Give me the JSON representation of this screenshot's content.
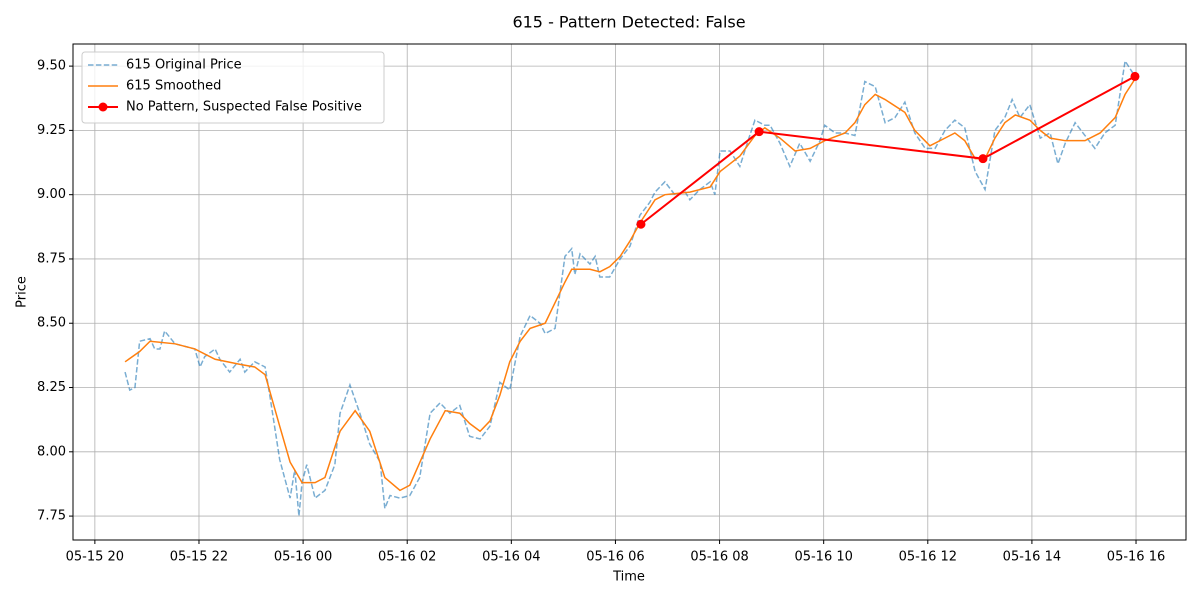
{
  "chart_data": {
    "type": "line",
    "title": "615 - Pattern Detected: False",
    "x_label": "Time",
    "y_label": "Price",
    "xlim": [
      19.58,
      40.96
    ],
    "ylim": [
      7.657,
      9.586
    ],
    "grid": true,
    "legend": "upper left",
    "xticks": [
      {
        "value": 20,
        "label": "05-15 20"
      },
      {
        "value": 22,
        "label": "05-15 22"
      },
      {
        "value": 24,
        "label": "05-16 00"
      },
      {
        "value": 26,
        "label": "05-16 02"
      },
      {
        "value": 28,
        "label": "05-16 04"
      },
      {
        "value": 30,
        "label": "05-16 06"
      },
      {
        "value": 32,
        "label": "05-16 08"
      },
      {
        "value": 34,
        "label": "05-16 10"
      },
      {
        "value": 36,
        "label": "05-16 12"
      },
      {
        "value": 38,
        "label": "05-16 14"
      },
      {
        "value": 40,
        "label": "05-16 16"
      }
    ],
    "yticks": [
      7.75,
      {
        "value": 8,
        "label": "8.00"
      },
      8.25,
      {
        "value": 8.5,
        "label": "8.50"
      },
      8.75,
      {
        "value": 9,
        "label": "9.00"
      },
      9.25,
      {
        "value": 9.5,
        "label": "9.50"
      }
    ],
    "series": [
      {
        "name": "615 Original Price",
        "color": "#1f77b4",
        "linestyle": "dashed",
        "alpha": 0.6,
        "linewidth": 1.5,
        "x": [
          20.58,
          20.67,
          20.77,
          20.86,
          21.06,
          21.15,
          21.25,
          21.34,
          21.54,
          21.73,
          21.92,
          22.02,
          22.11,
          22.31,
          22.4,
          22.59,
          22.79,
          22.88,
          23.07,
          23.27,
          23.36,
          23.55,
          23.75,
          23.84,
          23.92,
          23.98,
          24.07,
          24.23,
          24.42,
          24.61,
          24.71,
          24.9,
          25.09,
          25.28,
          25.48,
          25.57,
          25.67,
          25.86,
          26.05,
          26.24,
          26.44,
          26.63,
          26.82,
          27.01,
          27.2,
          27.4,
          27.59,
          27.78,
          27.97,
          28.17,
          28.36,
          28.55,
          28.65,
          28.84,
          29.03,
          29.16,
          29.22,
          29.32,
          29.51,
          29.61,
          29.7,
          29.89,
          30.09,
          30.28,
          30.47,
          30.66,
          30.76,
          30.95,
          31.14,
          31.34,
          31.43,
          31.62,
          31.82,
          31.91,
          32.01,
          32.2,
          32.39,
          32.58,
          32.68,
          32.87,
          32.97,
          33.16,
          33.35,
          33.54,
          33.74,
          33.93,
          34.02,
          34.22,
          34.41,
          34.6,
          34.79,
          34.99,
          35.18,
          35.37,
          35.56,
          35.75,
          35.95,
          36.14,
          36.33,
          36.52,
          36.71,
          36.91,
          37.1,
          37.29,
          37.48,
          37.62,
          37.77,
          37.96,
          38.16,
          38.35,
          38.5,
          38.64,
          38.83,
          39.02,
          39.21,
          39.4,
          39.6,
          39.79,
          39.98
        ],
        "values": [
          8.31,
          8.24,
          8.25,
          8.43,
          8.44,
          8.4,
          8.4,
          8.47,
          8.42,
          8.41,
          8.4,
          8.33,
          8.37,
          8.4,
          8.36,
          8.31,
          8.36,
          8.31,
          8.35,
          8.33,
          8.22,
          7.97,
          7.82,
          7.93,
          7.75,
          7.88,
          7.95,
          7.82,
          7.85,
          7.95,
          8.15,
          8.26,
          8.15,
          8.03,
          7.96,
          7.78,
          7.83,
          7.82,
          7.83,
          7.9,
          8.15,
          8.19,
          8.15,
          8.18,
          8.06,
          8.05,
          8.1,
          8.27,
          8.24,
          8.45,
          8.53,
          8.5,
          8.46,
          8.48,
          8.76,
          8.79,
          8.69,
          8.77,
          8.73,
          8.76,
          8.68,
          8.68,
          8.75,
          8.8,
          8.92,
          8.97,
          9.01,
          9.05,
          9.0,
          9.01,
          8.98,
          9.02,
          9.05,
          9.0,
          9.17,
          9.17,
          9.11,
          9.23,
          9.29,
          9.27,
          9.27,
          9.2,
          9.11,
          9.2,
          9.13,
          9.21,
          9.27,
          9.24,
          9.24,
          9.23,
          9.44,
          9.42,
          9.28,
          9.3,
          9.36,
          9.24,
          9.18,
          9.18,
          9.25,
          9.29,
          9.26,
          9.09,
          9.02,
          9.25,
          9.3,
          9.37,
          9.3,
          9.35,
          9.22,
          9.24,
          9.12,
          9.2,
          9.28,
          9.23,
          9.18,
          9.24,
          9.27,
          9.52,
          9.46
        ]
      },
      {
        "name": "615 Smoothed",
        "color": "#ff7f0e",
        "linestyle": "solid",
        "alpha": 1,
        "linewidth": 1.5,
        "x": [
          20.58,
          20.86,
          21.06,
          21.54,
          21.92,
          22.31,
          22.79,
          23.07,
          23.27,
          23.55,
          23.75,
          23.98,
          24.23,
          24.42,
          24.71,
          25.0,
          25.28,
          25.57,
          25.86,
          26.05,
          26.44,
          26.73,
          27.01,
          27.2,
          27.4,
          27.59,
          27.78,
          27.97,
          28.17,
          28.36,
          28.65,
          28.84,
          29.03,
          29.16,
          29.51,
          29.7,
          29.89,
          30.09,
          30.28,
          30.47,
          30.76,
          30.95,
          31.43,
          31.82,
          32.01,
          32.39,
          32.68,
          32.87,
          33.16,
          33.45,
          33.74,
          34.02,
          34.41,
          34.6,
          34.79,
          34.99,
          35.18,
          35.56,
          35.75,
          36.04,
          36.33,
          36.52,
          36.71,
          36.91,
          37.1,
          37.29,
          37.48,
          37.68,
          37.96,
          38.16,
          38.35,
          38.64,
          39.02,
          39.31,
          39.6,
          39.79,
          39.98
        ],
        "values": [
          8.35,
          8.39,
          8.43,
          8.42,
          8.4,
          8.36,
          8.34,
          8.33,
          8.3,
          8.1,
          7.96,
          7.88,
          7.88,
          7.9,
          8.08,
          8.16,
          8.08,
          7.9,
          7.85,
          7.87,
          8.05,
          8.16,
          8.15,
          8.11,
          8.08,
          8.12,
          8.22,
          8.35,
          8.43,
          8.48,
          8.5,
          8.58,
          8.66,
          8.71,
          8.71,
          8.7,
          8.72,
          8.76,
          8.82,
          8.89,
          8.98,
          9.0,
          9.01,
          9.03,
          9.09,
          9.15,
          9.23,
          9.26,
          9.22,
          9.17,
          9.18,
          9.21,
          9.24,
          9.28,
          9.35,
          9.39,
          9.37,
          9.32,
          9.25,
          9.19,
          9.22,
          9.24,
          9.21,
          9.14,
          9.14,
          9.22,
          9.28,
          9.31,
          9.29,
          9.25,
          9.22,
          9.21,
          9.21,
          9.24,
          9.3,
          9.39,
          9.45
        ]
      },
      {
        "name": "No Pattern, Suspected False Positive",
        "color": "#ff0000",
        "linestyle": "solid",
        "alpha": 1,
        "linewidth": 2,
        "marker": "o",
        "x": [
          30.49,
          32.76,
          37.06,
          39.98
        ],
        "values": [
          8.885,
          9.245,
          9.14,
          9.46
        ]
      }
    ]
  }
}
